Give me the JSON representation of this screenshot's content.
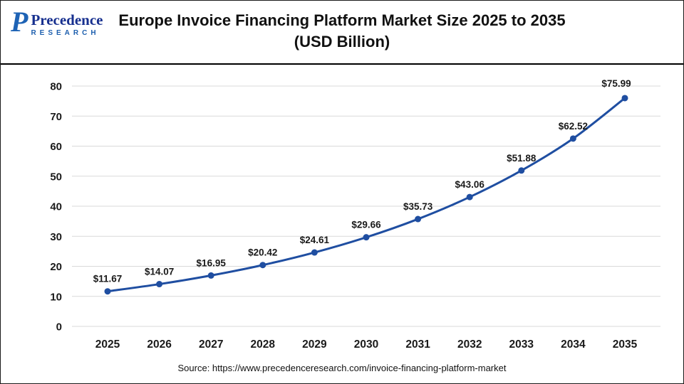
{
  "header": {
    "logo": {
      "icon_glyph": "P",
      "brand": "Precedence",
      "sub": "RESEARCH"
    },
    "title_line1": "Europe Invoice Financing Platform Market Size 2025 to 2035",
    "title_line2": "(USD Billion)"
  },
  "chart_data": {
    "type": "line",
    "title": "Europe Invoice Financing Platform Market Size 2025 to 2035 (USD Billion)",
    "categories": [
      "2025",
      "2026",
      "2027",
      "2028",
      "2029",
      "2030",
      "2031",
      "2032",
      "2033",
      "2034",
      "2035"
    ],
    "values": [
      11.67,
      14.07,
      16.95,
      20.42,
      24.61,
      29.66,
      35.73,
      43.06,
      51.88,
      62.52,
      75.99
    ],
    "data_labels": [
      "$11.67",
      "$14.07",
      "$16.95",
      "$20.42",
      "$24.61",
      "$29.66",
      "$35.73",
      "$43.06",
      "$51.88",
      "$62.52",
      "$75.99"
    ],
    "xlabel": "",
    "ylabel": "",
    "ylim": [
      0,
      80
    ],
    "ytick_step": 10,
    "grid": true,
    "legend_position": "none",
    "line_color": "#1f4ea1",
    "marker_color": "#1f4ea1",
    "axis_label_color": "#1a1a1a",
    "data_label_color": "#1a1a1a",
    "grid_color": "#d9d9d9"
  },
  "footer": {
    "source": "Source: https://www.precedenceresearch.com/invoice-financing-platform-market"
  }
}
